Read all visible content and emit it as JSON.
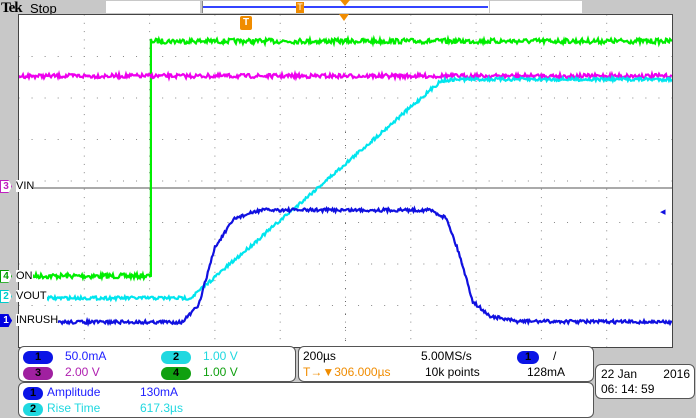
{
  "header": {
    "brand": "Tek",
    "state": "Stop"
  },
  "trigger_marker": "T",
  "ground_markers": [
    {
      "ch": "3",
      "label": "VIN",
      "color": "#c020c0",
      "level_div": 4.17
    },
    {
      "ch": "4",
      "label": "ON",
      "color": "#00a000",
      "level_div": 6.33
    },
    {
      "ch": "2",
      "label": "VOUT",
      "color": "#00cccc",
      "level_div": 6.82
    },
    {
      "ch": "1",
      "label": "INRUSH",
      "color": "#0000e0",
      "level_div": 7.4
    }
  ],
  "waveforms": [
    {
      "name": "ch4-green",
      "color": "#00ee00",
      "points_div": [
        [
          0,
          6.29
        ],
        [
          2.02,
          6.29
        ],
        [
          2.02,
          0.63
        ],
        [
          10,
          0.63
        ]
      ],
      "noise": 0.06
    },
    {
      "name": "ch3-magenta",
      "color": "#ee00ee",
      "points_div": [
        [
          0,
          1.47
        ],
        [
          10,
          1.47
        ]
      ],
      "noise": 0.05
    },
    {
      "name": "ch2-cyan",
      "color": "#00e5ee",
      "points_div": [
        [
          0,
          6.82
        ],
        [
          2.63,
          6.82
        ],
        [
          6.46,
          1.59
        ],
        [
          6.7,
          1.55
        ],
        [
          10,
          1.55
        ]
      ],
      "noise": 0.04
    },
    {
      "name": "ch1-blue",
      "color": "#1010e0",
      "points_div": [
        [
          0,
          7.4
        ],
        [
          2.5,
          7.4
        ],
        [
          2.75,
          7.0
        ],
        [
          3.0,
          5.6
        ],
        [
          3.3,
          4.9
        ],
        [
          3.7,
          4.7
        ],
        [
          6.3,
          4.7
        ],
        [
          6.55,
          4.9
        ],
        [
          6.75,
          5.8
        ],
        [
          6.95,
          6.9
        ],
        [
          7.2,
          7.25
        ],
        [
          7.6,
          7.38
        ],
        [
          10,
          7.4
        ]
      ],
      "noise": 0.04
    }
  ],
  "channels": [
    {
      "num": "1",
      "scale": "50.0mA",
      "color": "#2020ff",
      "pill": "#0a14e6"
    },
    {
      "num": "2",
      "scale": "1.00 V",
      "color": "#20d8e0",
      "pill": "#20d8e0"
    },
    {
      "num": "3",
      "scale": "2.00 V",
      "color": "#b020b0",
      "pill": "#a020a0"
    },
    {
      "num": "4",
      "scale": "1.00 V",
      "color": "#10a010",
      "pill": "#10a010"
    }
  ],
  "timebase": {
    "scale": "200µs",
    "sample_rate": "5.00MS/s",
    "trigger_pos": "306.000µs",
    "record": "10k points",
    "trig_src": "1",
    "trig_slope": "/",
    "trig_level": "128mA",
    "trig_icon": "T→▼"
  },
  "measurements": [
    {
      "num": "1",
      "name": "Amplitude",
      "value": "130mA",
      "color": "#2020ff",
      "pill": "#0a14e6"
    },
    {
      "num": "2",
      "name": "Rise Time",
      "value": "617.3µs",
      "color": "#20d8e0",
      "pill": "#20d8e0"
    }
  ],
  "datetime": {
    "date": "22 Jan",
    "year": "2016",
    "time": "06: 14: 59"
  }
}
